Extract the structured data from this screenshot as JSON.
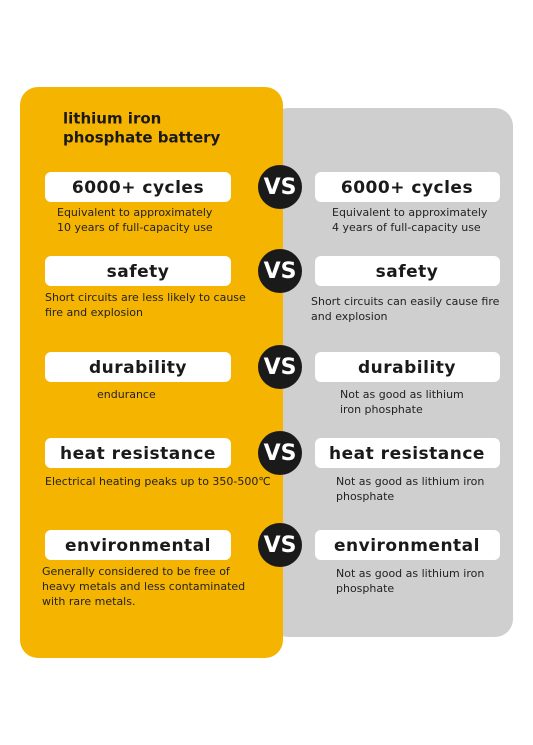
{
  "title": [
    "lithium iron",
    "phosphate battery"
  ],
  "rows": [
    {
      "left": {
        "label": "6000+ cycles",
        "description": [
          "Equivalent to approximately",
          "10 years of full-capacity use"
        ]
      },
      "vs": "VS",
      "right": {
        "label": "6000+ cycles",
        "description": [
          "Equivalent to approximately",
          "4 years of full-capacity use"
        ]
      }
    },
    {
      "left": {
        "label": "safety",
        "description": [
          "Short circuits are less likely to cause",
          "fire and explosion"
        ]
      },
      "vs": "VS",
      "right": {
        "label": "safety",
        "description": [
          "Short circuits can easily cause fire",
          "and explosion"
        ]
      }
    },
    {
      "left": {
        "label": "durability",
        "description": [
          "endurance"
        ]
      },
      "vs": "VS",
      "right": {
        "label": "durability",
        "description": [
          "Not as good as lithium",
          "iron phosphate"
        ]
      }
    },
    {
      "left": {
        "label": "heat resistance",
        "description": [
          "Electrical heating peaks up to 350-500℃"
        ]
      },
      "vs": "VS",
      "right": {
        "label": "heat resistance",
        "description": [
          "Not as good as lithium iron",
          "phosphate"
        ]
      }
    },
    {
      "left": {
        "label": "environmental",
        "description": [
          "Generally considered to be free of",
          " heavy metals and less contaminated",
          "with rare metals."
        ]
      },
      "vs": "VS",
      "right": {
        "label": "environmental",
        "description": [
          "Not as good as lithium iron",
          "phosphate"
        ]
      }
    }
  ]
}
